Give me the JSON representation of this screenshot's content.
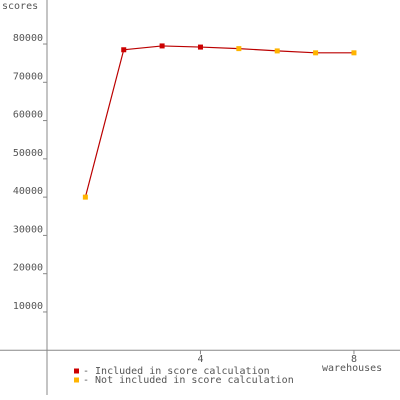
{
  "chart_data": {
    "type": "line",
    "y_label": "scores",
    "x_label": "warehouses",
    "x": [
      1,
      2,
      3,
      4,
      5,
      6,
      7,
      8
    ],
    "values": [
      40000,
      78500,
      79500,
      79200,
      78800,
      78200,
      77700,
      77700
    ],
    "included": [
      false,
      true,
      true,
      true,
      false,
      false,
      false,
      false
    ],
    "line_color": "#bb0000",
    "legend": [
      {
        "name": "- Included in score calculation",
        "color": "#cc0000"
      },
      {
        "name": "- Not included in score calculation",
        "color": "#ffb400"
      }
    ],
    "xlim": [
      0,
      9.2
    ],
    "xticks": [
      4,
      8
    ],
    "ylim": [
      -13000,
      91500
    ],
    "yticks": [
      10000,
      20000,
      30000,
      40000,
      50000,
      60000,
      70000,
      80000
    ]
  }
}
